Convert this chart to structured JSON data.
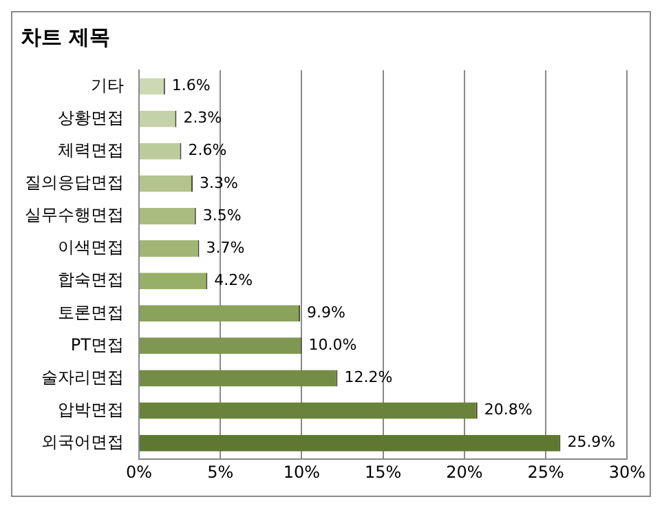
{
  "chart_data": {
    "type": "bar",
    "orientation": "horizontal",
    "title": "차트 제목",
    "categories": [
      "기타",
      "상황면접",
      "체력면접",
      "질의응답면접",
      "실무수행면접",
      "이색면접",
      "합숙면접",
      "토론면접",
      "PT면접",
      "술자리면접",
      "압박면접",
      "외국어면접"
    ],
    "values": [
      1.6,
      2.3,
      2.6,
      3.3,
      3.5,
      3.7,
      4.2,
      9.9,
      10.0,
      12.2,
      20.8,
      25.9
    ],
    "value_labels": [
      "1.6%",
      "2.3%",
      "2.6%",
      "3.3%",
      "3.5%",
      "3.7%",
      "4.2%",
      "9.9%",
      "10.0%",
      "12.2%",
      "20.8%",
      "25.9%"
    ],
    "colors": [
      "#cdd8b4",
      "#c5d1a8",
      "#bccb9b",
      "#b3c48e",
      "#aabd81",
      "#a1b674",
      "#98af67",
      "#8aa25a",
      "#7f984f",
      "#748d44",
      "#6a833a",
      "#5f7830"
    ],
    "xlim": [
      0,
      30
    ],
    "xticks": [
      {
        "value": 0,
        "label": "0%"
      },
      {
        "value": 5,
        "label": "5%"
      },
      {
        "value": 10,
        "label": "10%"
      },
      {
        "value": 15,
        "label": "15%"
      },
      {
        "value": 20,
        "label": "20%"
      },
      {
        "value": 25,
        "label": "25%"
      },
      {
        "value": 30,
        "label": "30%"
      }
    ],
    "grid": "x",
    "legend": false
  }
}
